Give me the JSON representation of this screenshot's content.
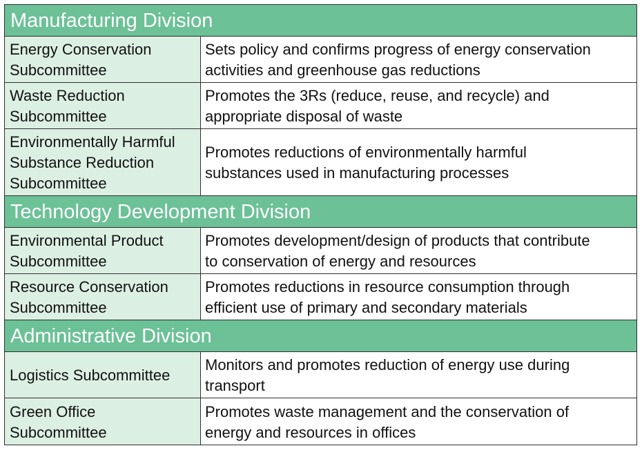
{
  "divisions": [
    {
      "title": "Manufacturing Division",
      "rows": [
        {
          "name": "Energy Conservation\nSubcommittee",
          "description": "Sets policy and confirms progress of energy conservation\nactivities and greenhouse gas reductions"
        },
        {
          "name": "Waste Reduction\nSubcommittee",
          "description": "Promotes the 3Rs (reduce, reuse, and recycle) and\nappropriate disposal of waste"
        },
        {
          "name": "Environmentally Harmful\nSubstance Reduction\nSubcommittee",
          "description": "Promotes reductions of environmentally harmful\nsubstances used in manufacturing processes"
        }
      ]
    },
    {
      "title": "Technology Development Division",
      "rows": [
        {
          "name": "Environmental Product\nSubcommittee",
          "description": "Promotes development/design of products that contribute\nto conservation of energy and resources"
        },
        {
          "name": "Resource Conservation\nSubcommittee",
          "description": "Promotes reductions in resource consumption through\nefficient use of primary and secondary materials"
        }
      ]
    },
    {
      "title": "Administrative Division",
      "rows": [
        {
          "name": "Logistics Subcommittee",
          "description": "Monitors and promotes reduction of energy use during\ntransport"
        },
        {
          "name": "Green Office\nSubcommittee",
          "description": "Promotes waste management and the conservation of\nenergy and resources in offices"
        }
      ]
    }
  ],
  "colors": {
    "header_bg": "#6cc196",
    "name_cell_bg": "#dcefe3",
    "border": "#2e2e2e"
  }
}
